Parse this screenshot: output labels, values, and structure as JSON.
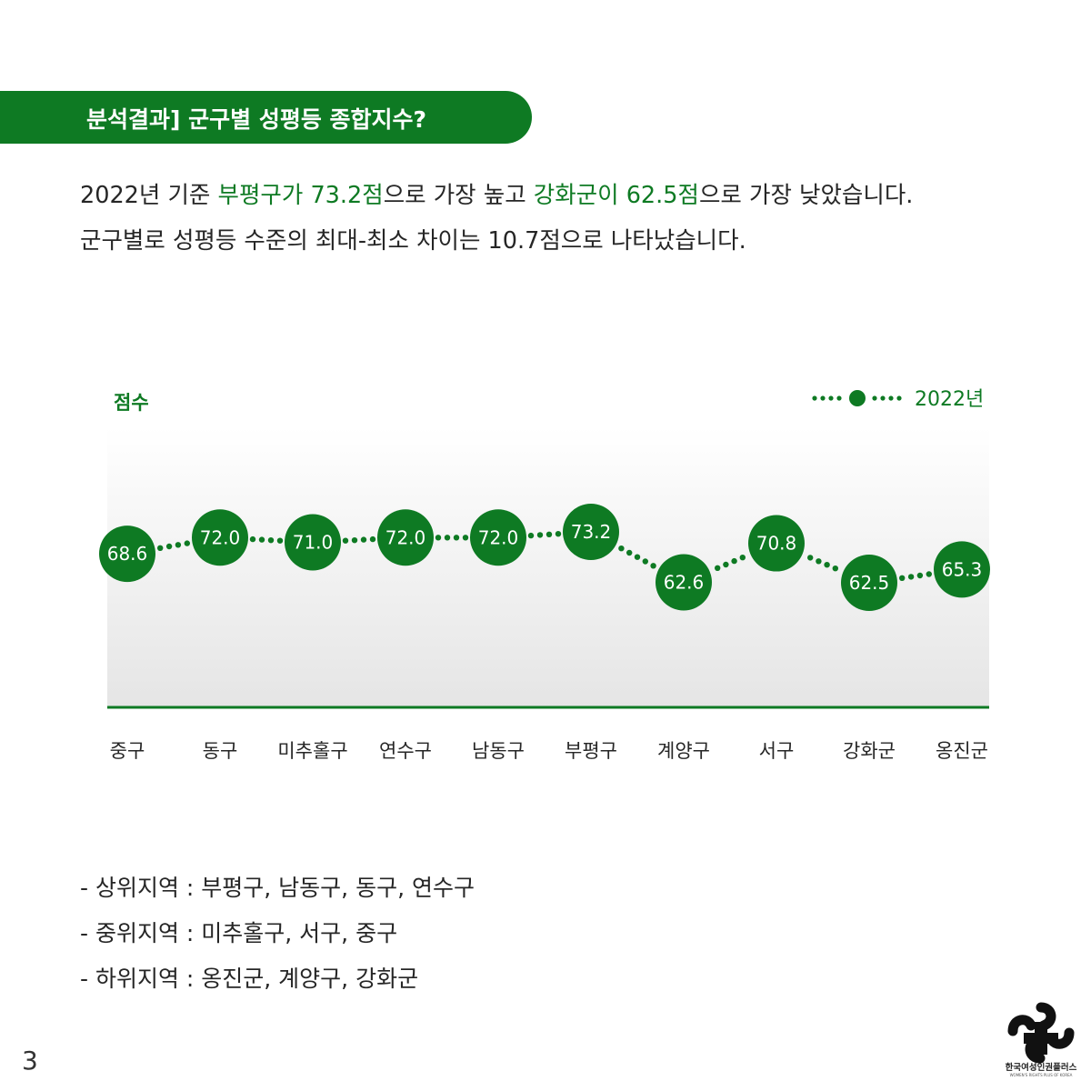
{
  "header": {
    "title": "분석결과] 군구별 성평등 종합지수?"
  },
  "summary": {
    "line1": {
      "t1": "2022년 기준 ",
      "h1": "부평구가 73.2점",
      "t2": "으로 가장 높고 ",
      "h2": "강화군이 62.5점",
      "t3": "으로 가장 낮았습니다."
    },
    "line2": "군구별로 성평등 수준의 최대-최소 차이는 10.7점으로 나타났습니다."
  },
  "chart_data": {
    "type": "line",
    "ylabel": "점수",
    "categories": [
      "중구",
      "동구",
      "미추홀구",
      "연수구",
      "남동구",
      "부평구",
      "계양구",
      "서구",
      "강화군",
      "옹진군"
    ],
    "series": [
      {
        "name": "2022년",
        "values": [
          68.6,
          72.0,
          71.0,
          72.0,
          72.0,
          73.2,
          62.6,
          70.8,
          62.5,
          65.3
        ],
        "labels": [
          "68.6",
          "72.0",
          "71.0",
          "72.0",
          "72.0",
          "73.2",
          "62.6",
          "70.8",
          "62.5",
          "65.3"
        ]
      }
    ],
    "line_style": "dotted",
    "legend_position": "top-right",
    "grid": false,
    "colors": {
      "series": "#0e7a23",
      "marker_text": "#ffffff",
      "baseline": "#0e7a23",
      "plot_background_top": "#ffffff",
      "plot_background_bottom": "#e5e5e5"
    }
  },
  "bullets": [
    "- 상위지역 : 부평구, 남동구, 동구, 연수구",
    "- 중위지역 : 미추홀구, 서구, 중구",
    "- 하위지역 : 옹진군, 계양구, 강화군"
  ],
  "page_number": "3",
  "logo": {
    "icon": "cross-knot-logo-icon",
    "name": "한국여성인권플러스",
    "subtitle": "WOMEN'S RIGHTS PLUS OF KOREA"
  },
  "theme": {
    "accent": "#0e7a23"
  }
}
